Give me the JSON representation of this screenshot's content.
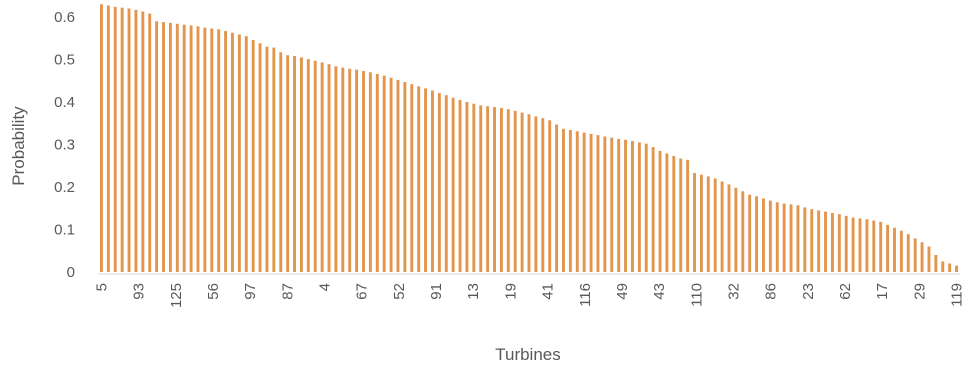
{
  "chart_data": {
    "type": "bar",
    "title": "",
    "xlabel": "Turbines",
    "ylabel": "Probability",
    "ylim": [
      0,
      0.6
    ],
    "y_ticks": [
      "0",
      "0.1",
      "0.2",
      "0.3",
      "0.4",
      "0.5",
      "0.6"
    ],
    "x_tick_labels": [
      "5",
      "93",
      "125",
      "56",
      "97",
      "87",
      "4",
      "67",
      "52",
      "91",
      "13",
      "19",
      "41",
      "116",
      "49",
      "43",
      "110",
      "32",
      "86",
      "23",
      "62",
      "17",
      "29",
      "119"
    ],
    "grid": false,
    "legend": "none",
    "bar_color": "#E2954D",
    "series": [
      {
        "values": [
          0.63,
          0.627,
          0.624,
          0.622,
          0.62,
          0.617,
          0.613,
          0.608,
          0.59,
          0.588,
          0.586,
          0.584,
          0.582,
          0.58,
          0.578,
          0.575,
          0.573,
          0.571,
          0.567,
          0.563,
          0.559,
          0.555,
          0.546,
          0.538,
          0.53,
          0.528,
          0.517,
          0.51,
          0.508,
          0.505,
          0.501,
          0.497,
          0.493,
          0.489,
          0.484,
          0.481,
          0.478,
          0.476,
          0.473,
          0.47,
          0.466,
          0.462,
          0.457,
          0.452,
          0.447,
          0.442,
          0.437,
          0.432,
          0.427,
          0.421,
          0.416,
          0.41,
          0.405,
          0.4,
          0.396,
          0.392,
          0.39,
          0.388,
          0.386,
          0.383,
          0.379,
          0.375,
          0.371,
          0.366,
          0.362,
          0.357,
          0.347,
          0.337,
          0.334,
          0.331,
          0.328,
          0.325,
          0.322,
          0.319,
          0.316,
          0.313,
          0.311,
          0.308,
          0.305,
          0.302,
          0.294,
          0.285,
          0.279,
          0.273,
          0.267,
          0.264,
          0.233,
          0.229,
          0.225,
          0.22,
          0.213,
          0.206,
          0.198,
          0.19,
          0.182,
          0.178,
          0.173,
          0.168,
          0.164,
          0.161,
          0.159,
          0.157,
          0.152,
          0.148,
          0.145,
          0.142,
          0.139,
          0.136,
          0.132,
          0.128,
          0.126,
          0.124,
          0.121,
          0.118,
          0.111,
          0.104,
          0.097,
          0.089,
          0.079,
          0.07,
          0.06,
          0.04,
          0.025,
          0.02,
          0.015
        ]
      }
    ]
  }
}
